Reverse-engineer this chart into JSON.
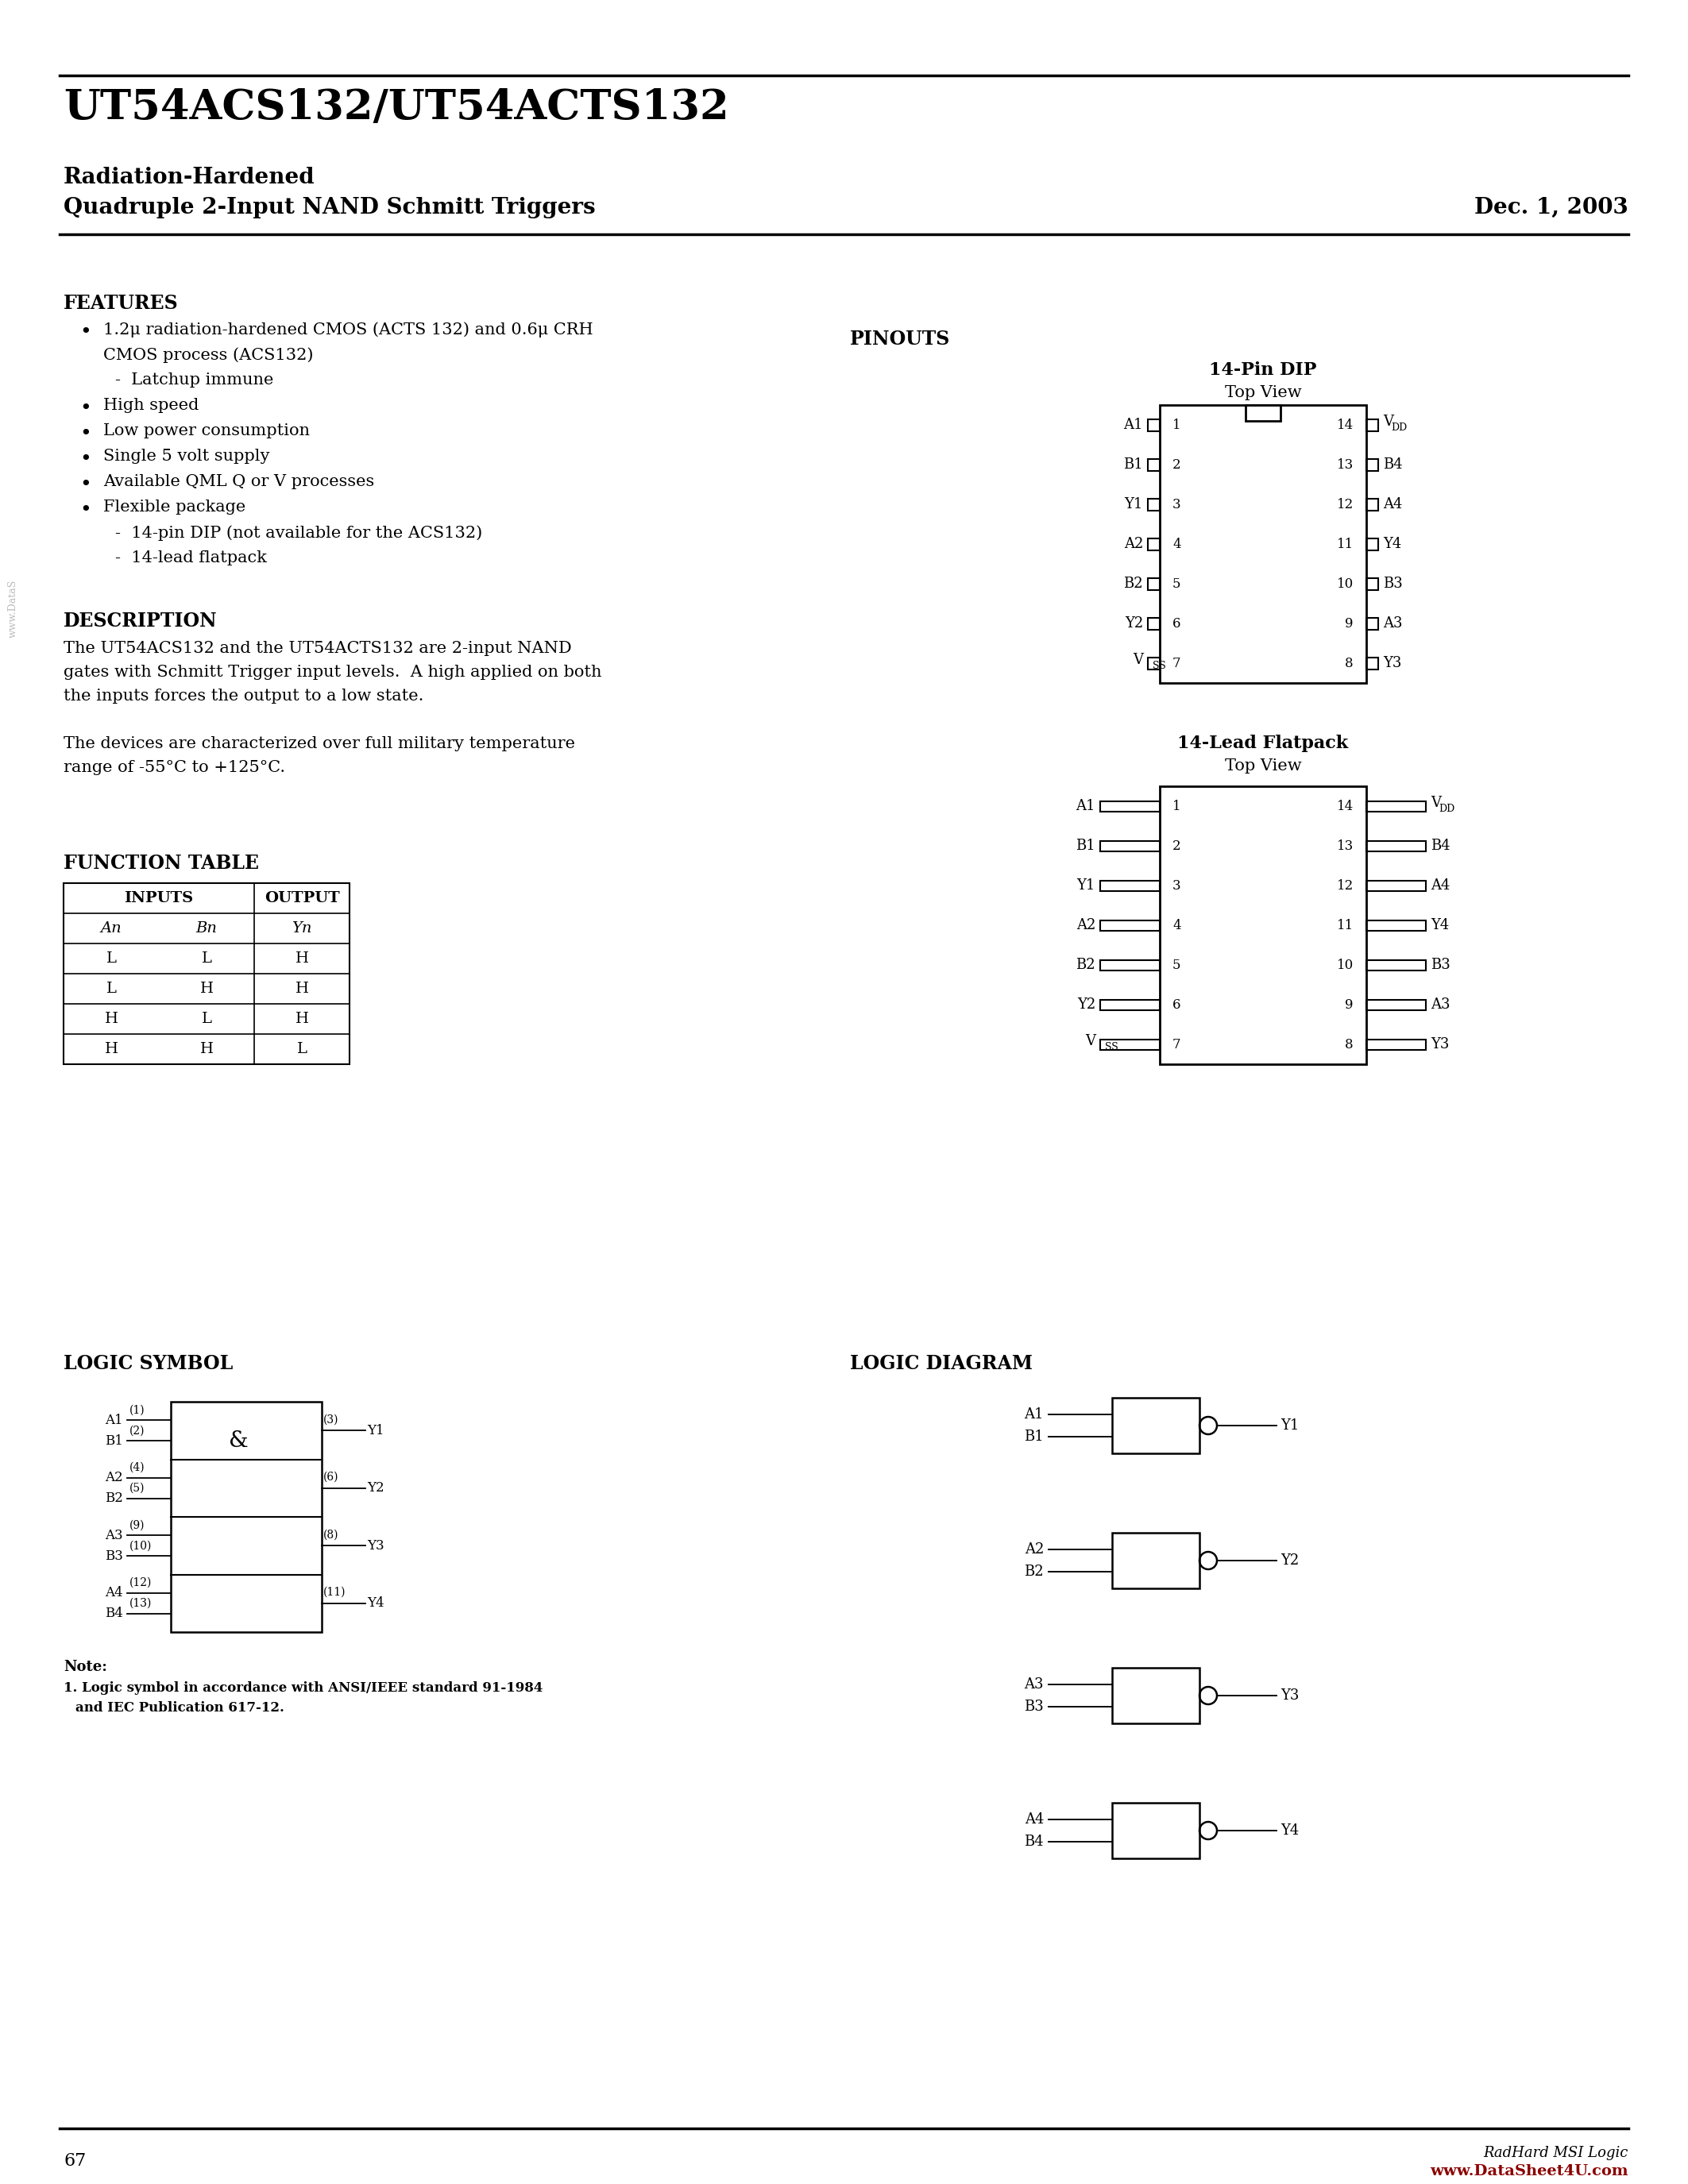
{
  "title": "UT54ACS132/UT54ACTS132",
  "subtitle1": "Radiation-Hardened",
  "subtitle2": "Quadruple 2-Input NAND Schmitt Triggers",
  "date": "Dec. 1, 2003",
  "bg_color": "#ffffff",
  "text_color": "#000000",
  "page_number": "67",
  "features_title": "FEATURES",
  "description_title": "DESCRIPTION",
  "function_table_title": "FUNCTION TABLE",
  "pinouts_title": "PINOUTS",
  "dip_title": "14-Pin DIP",
  "dip_subtitle": "Top View",
  "flatpack_title": "14-Lead Flatpack",
  "flatpack_subtitle": "Top View",
  "logic_symbol_title": "LOGIC SYMBOL",
  "logic_diagram_title": "LOGIC DIAGRAM",
  "left_pins": [
    "A1",
    "B1",
    "Y1",
    "A2",
    "B2",
    "Y2",
    "VSS"
  ],
  "left_nums": [
    "1",
    "2",
    "3",
    "4",
    "5",
    "6",
    "7"
  ],
  "right_nums": [
    "14",
    "13",
    "12",
    "11",
    "10",
    "9",
    "8"
  ],
  "right_pins": [
    "VDD",
    "B4",
    "A4",
    "Y4",
    "B3",
    "A3",
    "Y3"
  ]
}
